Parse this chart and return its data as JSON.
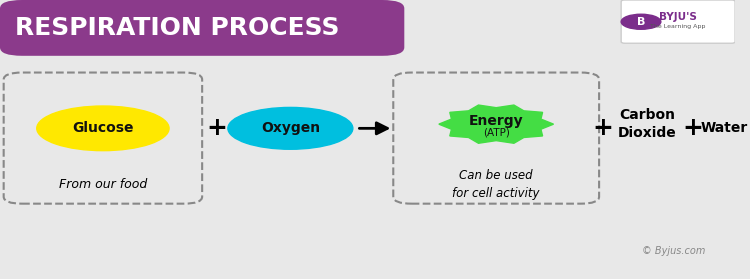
{
  "bg_color": "#e8e8e8",
  "header_color": "#8B3A8B",
  "header_text": "RESPIRATION PROCESS",
  "header_text_color": "#ffffff",
  "glucose_color": "#FFE800",
  "glucose_label": "Glucose",
  "glucose_sublabel": "From our food",
  "oxygen_color": "#00BFDF",
  "oxygen_label": "Oxygen",
  "energy_outer_color": "#44DD44",
  "energy_label": "Energy",
  "energy_sublabel": "(ATP)",
  "energy_caption": "Can be used\nfor cell activity",
  "co2_label": "Carbon\nDioxide",
  "water_label": "Water",
  "plus_color": "#000000",
  "arrow_color": "#000000",
  "dashed_box_color": "#888888",
  "label_color": "#000000",
  "byju_text": "© Byjus.com",
  "byju_color": "#888888"
}
